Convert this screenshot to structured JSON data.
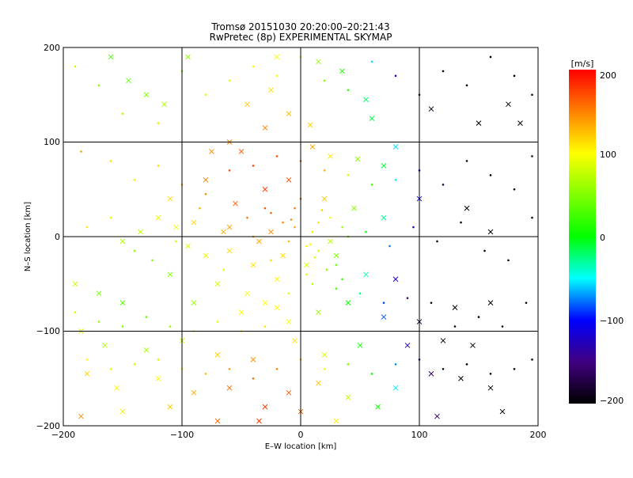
{
  "chart_data": {
    "type": "scatter",
    "title": "Tromsø 20151030 20:20:00–20:21:43",
    "subtitle": "RwPretec (8p) EXPERIMENTAL SKYMAP",
    "xlabel": "E–W location [km]",
    "ylabel": "N–S location [km]",
    "xlim": [
      -200,
      200
    ],
    "ylim": [
      -200,
      200
    ],
    "xticks": [
      "−200",
      "−100",
      "0",
      "100",
      "200"
    ],
    "yticks": [
      "−200",
      "−100",
      "0",
      "100",
      "200"
    ],
    "grid": true,
    "colorbar": {
      "label": "[m/s]",
      "range": [
        -200,
        200
      ],
      "ticks": [
        "200",
        "100",
        "0",
        "−100",
        "−200"
      ]
    },
    "series": [
      {
        "marker": "cross",
        "points": [
          [
            -160,
            190
          ],
          [
            -145,
            165
          ],
          [
            -95,
            190
          ],
          [
            -20,
            190
          ],
          [
            15,
            185
          ],
          [
            -130,
            150
          ],
          [
            -45,
            140
          ],
          [
            55,
            145
          ],
          [
            110,
            135
          ],
          [
            185,
            120
          ],
          [
            -115,
            140
          ],
          [
            -25,
            155
          ],
          [
            -10,
            130
          ],
          [
            -30,
            115
          ],
          [
            8,
            118
          ],
          [
            35,
            175
          ],
          [
            60,
            125
          ],
          [
            150,
            120
          ],
          [
            175,
            140
          ],
          [
            -60,
            100
          ],
          [
            -75,
            90
          ],
          [
            -50,
            90
          ],
          [
            10,
            95
          ],
          [
            25,
            85
          ],
          [
            48,
            82
          ],
          [
            70,
            75
          ],
          [
            80,
            95
          ],
          [
            -80,
            60
          ],
          [
            -110,
            40
          ],
          [
            -120,
            20
          ],
          [
            -90,
            15
          ],
          [
            -55,
            35
          ],
          [
            -30,
            50
          ],
          [
            -10,
            60
          ],
          [
            20,
            40
          ],
          [
            45,
            30
          ],
          [
            70,
            20
          ],
          [
            100,
            40
          ],
          [
            140,
            30
          ],
          [
            160,
            5
          ],
          [
            -150,
            -5
          ],
          [
            -135,
            5
          ],
          [
            -105,
            10
          ],
          [
            -95,
            -10
          ],
          [
            -80,
            -20
          ],
          [
            -60,
            -15
          ],
          [
            -40,
            -30
          ],
          [
            -20,
            -45
          ],
          [
            5,
            -30
          ],
          [
            30,
            -20
          ],
          [
            55,
            -40
          ],
          [
            80,
            -45
          ],
          [
            -190,
            -50
          ],
          [
            -170,
            -60
          ],
          [
            -150,
            -70
          ],
          [
            -110,
            -40
          ],
          [
            -90,
            -70
          ],
          [
            -70,
            -50
          ],
          [
            -50,
            -80
          ],
          [
            -30,
            -70
          ],
          [
            -10,
            -90
          ],
          [
            15,
            -80
          ],
          [
            40,
            -70
          ],
          [
            70,
            -85
          ],
          [
            100,
            -90
          ],
          [
            130,
            -75
          ],
          [
            160,
            -70
          ],
          [
            -185,
            -100
          ],
          [
            -165,
            -115
          ],
          [
            -130,
            -120
          ],
          [
            -100,
            -110
          ],
          [
            -70,
            -125
          ],
          [
            -40,
            -130
          ],
          [
            -5,
            -110
          ],
          [
            20,
            -125
          ],
          [
            50,
            -115
          ],
          [
            90,
            -115
          ],
          [
            120,
            -110
          ],
          [
            145,
            -115
          ],
          [
            -180,
            -145
          ],
          [
            -155,
            -160
          ],
          [
            -120,
            -150
          ],
          [
            -90,
            -165
          ],
          [
            -60,
            -160
          ],
          [
            -30,
            -180
          ],
          [
            -10,
            -165
          ],
          [
            15,
            -155
          ],
          [
            40,
            -170
          ],
          [
            80,
            -160
          ],
          [
            110,
            -145
          ],
          [
            135,
            -150
          ],
          [
            160,
            -160
          ],
          [
            -185,
            -190
          ],
          [
            -150,
            -185
          ],
          [
            -110,
            -180
          ],
          [
            -70,
            -195
          ],
          [
            -35,
            -195
          ],
          [
            0,
            -185
          ],
          [
            30,
            -195
          ],
          [
            65,
            -180
          ],
          [
            115,
            -190
          ],
          [
            170,
            -185
          ],
          [
            -60,
            10
          ],
          [
            -65,
            5
          ],
          [
            -25,
            5
          ],
          [
            -35,
            -5
          ],
          [
            -15,
            -20
          ],
          [
            25,
            -5
          ],
          [
            -45,
            -60
          ],
          [
            -20,
            -75
          ]
        ]
      },
      {
        "marker": "dot",
        "points": [
          [
            -190,
            180
          ],
          [
            -170,
            160
          ],
          [
            -150,
            130
          ],
          [
            -120,
            120
          ],
          [
            -100,
            175
          ],
          [
            -80,
            150
          ],
          [
            -60,
            165
          ],
          [
            -40,
            180
          ],
          [
            -20,
            170
          ],
          [
            0,
            190
          ],
          [
            20,
            165
          ],
          [
            40,
            155
          ],
          [
            60,
            185
          ],
          [
            80,
            170
          ],
          [
            100,
            150
          ],
          [
            120,
            175
          ],
          [
            140,
            160
          ],
          [
            160,
            190
          ],
          [
            180,
            170
          ],
          [
            195,
            150
          ],
          [
            -185,
            90
          ],
          [
            -160,
            80
          ],
          [
            -140,
            60
          ],
          [
            -120,
            75
          ],
          [
            -100,
            55
          ],
          [
            -80,
            45
          ],
          [
            -60,
            70
          ],
          [
            -40,
            75
          ],
          [
            -20,
            85
          ],
          [
            0,
            80
          ],
          [
            20,
            70
          ],
          [
            40,
            65
          ],
          [
            60,
            55
          ],
          [
            80,
            60
          ],
          [
            100,
            70
          ],
          [
            120,
            55
          ],
          [
            140,
            80
          ],
          [
            160,
            65
          ],
          [
            180,
            50
          ],
          [
            195,
            85
          ],
          [
            -180,
            10
          ],
          [
            -160,
            20
          ],
          [
            -140,
            -15
          ],
          [
            -125,
            -25
          ],
          [
            -105,
            -5
          ],
          [
            -85,
            30
          ],
          [
            -65,
            -35
          ],
          [
            -45,
            20
          ],
          [
            -25,
            25
          ],
          [
            -5,
            30
          ],
          [
            15,
            15
          ],
          [
            35,
            10
          ],
          [
            55,
            5
          ],
          [
            75,
            -10
          ],
          [
            95,
            10
          ],
          [
            115,
            -5
          ],
          [
            135,
            15
          ],
          [
            155,
            -15
          ],
          [
            175,
            -25
          ],
          [
            195,
            20
          ],
          [
            -190,
            -80
          ],
          [
            -170,
            -90
          ],
          [
            -150,
            -95
          ],
          [
            -130,
            -85
          ],
          [
            -110,
            -95
          ],
          [
            -90,
            -100
          ],
          [
            -70,
            -90
          ],
          [
            -50,
            -100
          ],
          [
            -30,
            -95
          ],
          [
            -10,
            -60
          ],
          [
            10,
            -50
          ],
          [
            30,
            -55
          ],
          [
            50,
            -60
          ],
          [
            70,
            -70
          ],
          [
            90,
            -65
          ],
          [
            110,
            -70
          ],
          [
            130,
            -95
          ],
          [
            150,
            -85
          ],
          [
            170,
            -95
          ],
          [
            190,
            -70
          ],
          [
            -180,
            -130
          ],
          [
            -160,
            -140
          ],
          [
            -140,
            -135
          ],
          [
            -120,
            -130
          ],
          [
            -100,
            -140
          ],
          [
            -80,
            -145
          ],
          [
            -60,
            -140
          ],
          [
            -40,
            -150
          ],
          [
            -20,
            -140
          ],
          [
            0,
            -130
          ],
          [
            20,
            -140
          ],
          [
            40,
            -135
          ],
          [
            60,
            -145
          ],
          [
            80,
            -135
          ],
          [
            100,
            -130
          ],
          [
            120,
            -140
          ],
          [
            140,
            -135
          ],
          [
            160,
            -145
          ],
          [
            180,
            -140
          ],
          [
            195,
            -130
          ],
          [
            -5,
            10
          ],
          [
            5,
            -10
          ],
          [
            10,
            5
          ],
          [
            -10,
            -5
          ],
          [
            15,
            -15
          ],
          [
            -15,
            15
          ],
          [
            25,
            20
          ],
          [
            -25,
            -25
          ],
          [
            30,
            -30
          ],
          [
            -30,
            30
          ],
          [
            0,
            40
          ],
          [
            5,
            -40
          ],
          [
            40,
            0
          ],
          [
            -40,
            0
          ],
          [
            12,
            -22
          ],
          [
            18,
            28
          ],
          [
            -8,
            18
          ],
          [
            8,
            -8
          ],
          [
            22,
            -35
          ],
          [
            35,
            -45
          ]
        ]
      }
    ]
  }
}
